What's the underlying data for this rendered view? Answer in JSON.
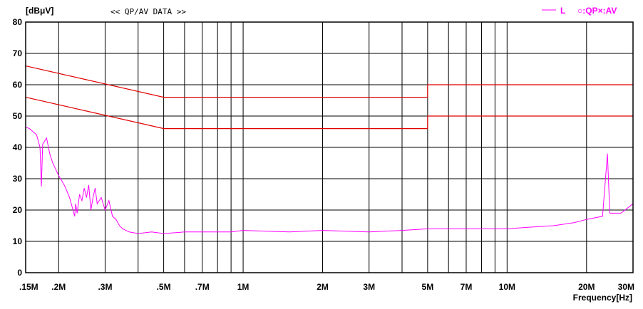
{
  "chart_data": {
    "type": "line",
    "title": "<< QP/AV DATA >>",
    "ylabel": "[dBμV]",
    "xlabel": "Frequency[Hz]",
    "x_scale": "log",
    "xlim": [
      150000,
      30000000
    ],
    "ylim": [
      0,
      80
    ],
    "grid": true,
    "y_ticks": [
      0,
      10,
      20,
      30,
      40,
      50,
      60,
      70,
      80
    ],
    "x_ticks": [
      {
        "value": 150000,
        "label": ".15M"
      },
      {
        "value": 200000,
        "label": ".2M"
      },
      {
        "value": 300000,
        "label": ".3M"
      },
      {
        "value": 500000,
        "label": ".5M"
      },
      {
        "value": 700000,
        "label": ".7M"
      },
      {
        "value": 1000000,
        "label": "1M"
      },
      {
        "value": 2000000,
        "label": "2M"
      },
      {
        "value": 3000000,
        "label": "3M"
      },
      {
        "value": 5000000,
        "label": "5M"
      },
      {
        "value": 7000000,
        "label": "7M"
      },
      {
        "value": 10000000,
        "label": "10M"
      },
      {
        "value": 20000000,
        "label": "20M"
      },
      {
        "value": 30000000,
        "label": "30M"
      }
    ],
    "extra_gridlines_x": [
      400000,
      600000,
      800000,
      900000,
      4000000,
      6000000,
      8000000,
      9000000
    ],
    "legend": {
      "placement": "top-right",
      "line_label": "L",
      "marker_label": "○:QP×:AV"
    },
    "series": [
      {
        "name": "L",
        "color": "#ff00ff",
        "points": [
          [
            150000,
            46.5
          ],
          [
            155000,
            46
          ],
          [
            160000,
            45
          ],
          [
            165000,
            44
          ],
          [
            170000,
            40
          ],
          [
            172000,
            27.5
          ],
          [
            174000,
            41
          ],
          [
            180000,
            43
          ],
          [
            185000,
            38
          ],
          [
            190000,
            35
          ],
          [
            195000,
            33
          ],
          [
            200000,
            31
          ],
          [
            210000,
            28
          ],
          [
            215000,
            26
          ],
          [
            220000,
            24
          ],
          [
            225000,
            21
          ],
          [
            230000,
            18
          ],
          [
            232000,
            22
          ],
          [
            235000,
            19
          ],
          [
            240000,
            25
          ],
          [
            245000,
            23
          ],
          [
            250000,
            27
          ],
          [
            255000,
            24
          ],
          [
            260000,
            28
          ],
          [
            265000,
            20
          ],
          [
            270000,
            24
          ],
          [
            275000,
            27
          ],
          [
            280000,
            22
          ],
          [
            290000,
            24
          ],
          [
            300000,
            20
          ],
          [
            310000,
            23
          ],
          [
            320000,
            18
          ],
          [
            330000,
            17
          ],
          [
            340000,
            15
          ],
          [
            350000,
            14
          ],
          [
            370000,
            13
          ],
          [
            400000,
            12.5
          ],
          [
            450000,
            13
          ],
          [
            500000,
            12.5
          ],
          [
            600000,
            13
          ],
          [
            700000,
            13
          ],
          [
            800000,
            13
          ],
          [
            900000,
            13
          ],
          [
            1000000,
            13.5
          ],
          [
            1500000,
            13
          ],
          [
            2000000,
            13.5
          ],
          [
            3000000,
            13
          ],
          [
            4000000,
            13.5
          ],
          [
            5000000,
            14
          ],
          [
            7000000,
            14
          ],
          [
            9000000,
            14
          ],
          [
            10000000,
            14
          ],
          [
            12000000,
            14.5
          ],
          [
            15000000,
            15
          ],
          [
            18000000,
            16
          ],
          [
            20000000,
            17
          ],
          [
            23000000,
            18
          ],
          [
            24000000,
            38
          ],
          [
            24500000,
            19
          ],
          [
            27000000,
            19
          ],
          [
            30000000,
            22
          ]
        ]
      },
      {
        "name": "",
        "color": "#e00000",
        "points": [
          [
            150000,
            66
          ],
          [
            500000,
            56
          ],
          [
            5000000,
            56
          ],
          [
            5000000,
            60
          ],
          [
            30000000,
            60
          ]
        ]
      },
      {
        "name": "",
        "color": "#e00000",
        "points": [
          [
            150000,
            56
          ],
          [
            500000,
            46
          ],
          [
            5000000,
            46
          ],
          [
            5000000,
            50
          ],
          [
            30000000,
            50
          ]
        ]
      }
    ]
  }
}
